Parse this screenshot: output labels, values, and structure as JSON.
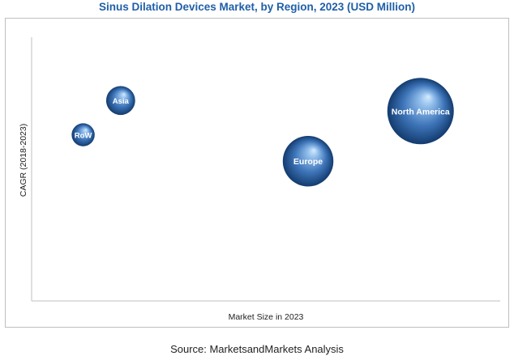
{
  "chart_data": {
    "type": "scatter",
    "title": "Sinus Dilation Devices Market, by Region, 2023 (USD Million)",
    "xlabel": "Market Size in 2023",
    "ylabel": "CAGR (2018-2023)",
    "xlim": [
      0,
      100
    ],
    "ylim": [
      0,
      100
    ],
    "grid": false,
    "legend": "none",
    "points": [
      {
        "label": "North America",
        "x": 83,
        "y": 72,
        "size": 100
      },
      {
        "label": "Europe",
        "x": 59,
        "y": 53,
        "size": 58
      },
      {
        "label": "Asia",
        "x": 19,
        "y": 76,
        "size": 19
      },
      {
        "label": "RoW",
        "x": 11,
        "y": 63,
        "size": 12
      }
    ]
  },
  "source": "Source: MarketsandMarkets Analysis",
  "colors": {
    "title": "#1f5fa8",
    "bubble_light": "#a8cdf0",
    "bubble_mid": "#4f86c6",
    "bubble_dark": "#16427a"
  }
}
